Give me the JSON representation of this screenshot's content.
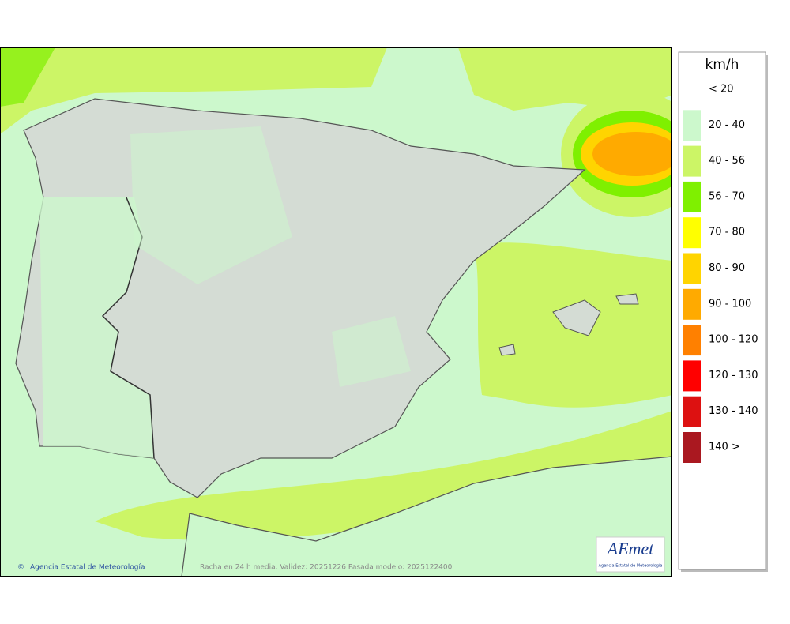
{
  "legend": {
    "title": "km/h",
    "items": [
      {
        "label": "< 20",
        "color": null
      },
      {
        "label": "20 - 40",
        "color": "#ccf8cc"
      },
      {
        "label": "40 - 56",
        "color": "#ccf566"
      },
      {
        "label": "56 - 70",
        "color": "#7ff000"
      },
      {
        "label": "70 - 80",
        "color": "#ffff00"
      },
      {
        "label": "80 - 90",
        "color": "#ffd400"
      },
      {
        "label": "90 - 100",
        "color": "#ffaa00"
      },
      {
        "label": "100 - 120",
        "color": "#ff8000"
      },
      {
        "label": "120 - 130",
        "color": "#ff0000"
      },
      {
        "label": "130 - 140",
        "color": "#dd1111"
      },
      {
        "label": "140 >",
        "color": "#aa1820"
      }
    ]
  },
  "footer": {
    "credit": "Agencia Estatal de Meteorología",
    "caption": "Racha en 24 h media. Validez: 20251226 Pasada modelo: 2025122400"
  },
  "logo": {
    "name": "AEmet",
    "subtitle": "Agencia Estatal de Meteorología"
  }
}
